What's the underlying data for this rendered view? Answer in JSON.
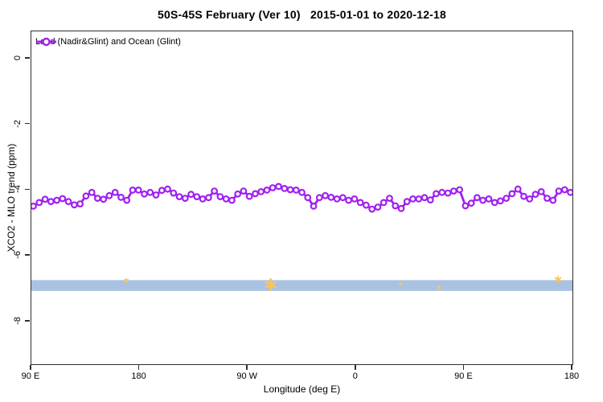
{
  "title": "50S-45S February (Ver 10)   2015-01-01 to 2020-12-18",
  "legend": {
    "label": "Land (Nadir&Glint) and Ocean (Glint)",
    "marker": "open-circle-on-line",
    "color": "#A020F0",
    "position": "top-left-inside"
  },
  "chart_data": {
    "type": "line",
    "title": "50S-45S February (Ver 10)   2015-01-01 to 2020-12-18",
    "xlabel": "Longitude (deg E)",
    "ylabel": "XCO2 - MLO trend (ppm)",
    "grid": false,
    "xlim": [
      90,
      540
    ],
    "ylim": [
      -9.3,
      0.83
    ],
    "x_ticks": {
      "positions": [
        90,
        180,
        270,
        360,
        450,
        540
      ],
      "labels": [
        "90 E",
        "180",
        "90 W",
        "0",
        "90 E",
        "180"
      ],
      "note": "longitude axis wraps eastward: 90E > 180 > 90W > 0 > 90E > 180"
    },
    "y_ticks": {
      "positions": [
        0,
        -2,
        -4,
        -6,
        -8
      ],
      "labels": [
        "0",
        "-2",
        "-4",
        "-6",
        "-8"
      ]
    },
    "series": [
      {
        "name": "Land (Nadir&Glint) and Ocean (Glint)",
        "color": "#A020F0",
        "marker": "open-circle",
        "x_start_deg": 91.7,
        "x_step_deg": 4.855,
        "values": [
          -4.49,
          -4.38,
          -4.28,
          -4.35,
          -4.31,
          -4.26,
          -4.35,
          -4.45,
          -4.42,
          -4.18,
          -4.07,
          -4.25,
          -4.28,
          -4.17,
          -4.07,
          -4.22,
          -4.31,
          -4.0,
          -4.0,
          -4.12,
          -4.07,
          -4.15,
          -4.01,
          -3.97,
          -4.09,
          -4.2,
          -4.25,
          -4.13,
          -4.2,
          -4.27,
          -4.23,
          -4.03,
          -4.2,
          -4.27,
          -4.31,
          -4.12,
          -4.03,
          -4.19,
          -4.11,
          -4.05,
          -4.0,
          -3.93,
          -3.89,
          -3.95,
          -3.99,
          -4.0,
          -4.07,
          -4.23,
          -4.49,
          -4.23,
          -4.17,
          -4.22,
          -4.27,
          -4.23,
          -4.31,
          -4.27,
          -4.38,
          -4.46,
          -4.58,
          -4.52,
          -4.38,
          -4.25,
          -4.48,
          -4.56,
          -4.35,
          -4.27,
          -4.27,
          -4.23,
          -4.3,
          -4.11,
          -4.07,
          -4.09,
          -4.03,
          -3.99,
          -4.48,
          -4.4,
          -4.23,
          -4.31,
          -4.27,
          -4.38,
          -4.33,
          -4.25,
          -4.11,
          -3.97,
          -4.19,
          -4.27,
          -4.13,
          -4.05,
          -4.25,
          -4.31,
          -4.03,
          -3.99,
          -4.07
        ]
      }
    ],
    "band": {
      "description": "horizontal shaded band across full x range",
      "color": "#A9C2E2",
      "y_top": -6.74,
      "y_bottom": -7.07,
      "markers": {
        "shape": "asterisk",
        "color": "#F8C463",
        "points": [
          {
            "x_deg": 169,
            "y": -6.75,
            "size": 5
          },
          {
            "x_deg": 289,
            "y": -6.88,
            "size": 13
          },
          {
            "x_deg": 397,
            "y": -6.85,
            "size": 3
          },
          {
            "x_deg": 429,
            "y": -6.97,
            "size": 4
          },
          {
            "x_deg": 528,
            "y": -6.72,
            "size": 8
          }
        ]
      }
    }
  }
}
